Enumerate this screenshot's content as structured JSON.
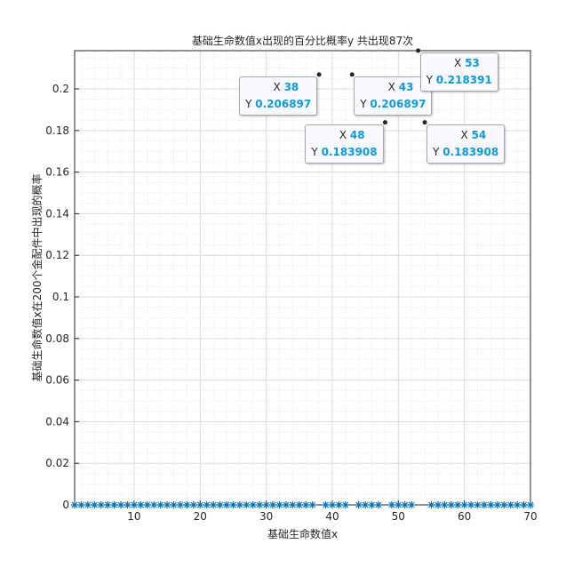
{
  "chart_data": {
    "type": "scatter",
    "title": "基础生命数值x出现的百分比概率y   共出现87次",
    "xlabel": "基础生命数值x",
    "ylabel": "基础生命数值x在200个金配件中出现的概率",
    "xlim": [
      1,
      70
    ],
    "ylim": [
      0,
      0.218391
    ],
    "xticks": [
      10,
      20,
      30,
      40,
      50,
      60,
      70
    ],
    "yticks": [
      0,
      0.02,
      0.04,
      0.06,
      0.08,
      0.1,
      0.12,
      0.14,
      0.16,
      0.18,
      0.2
    ],
    "grid": true,
    "marker": "*",
    "color": "#0072bd",
    "x": [
      1,
      2,
      3,
      4,
      5,
      6,
      7,
      8,
      9,
      10,
      11,
      12,
      13,
      14,
      15,
      16,
      17,
      18,
      19,
      20,
      21,
      22,
      23,
      24,
      25,
      26,
      27,
      28,
      29,
      30,
      31,
      32,
      33,
      34,
      35,
      36,
      37,
      38,
      39,
      40,
      41,
      42,
      43,
      44,
      45,
      46,
      47,
      48,
      49,
      50,
      51,
      52,
      53,
      54,
      55,
      56,
      57,
      58,
      59,
      60,
      61,
      62,
      63,
      64,
      65,
      66,
      67,
      68,
      69,
      70
    ],
    "y": [
      0,
      0,
      0,
      0,
      0,
      0,
      0,
      0,
      0,
      0,
      0,
      0,
      0,
      0,
      0,
      0,
      0,
      0,
      0,
      0,
      0,
      0,
      0,
      0,
      0,
      0,
      0,
      0,
      0,
      0,
      0,
      0,
      0,
      0,
      0,
      0,
      0,
      0.206897,
      0,
      0,
      0,
      0,
      0.206897,
      0,
      0,
      0,
      0,
      0.183908,
      0,
      0,
      0,
      0,
      0.218391,
      0.183908,
      0,
      0,
      0,
      0,
      0,
      0,
      0,
      0,
      0,
      0,
      0,
      0,
      0,
      0,
      0,
      0
    ],
    "datatips": [
      {
        "x": "38",
        "y": "0.206897",
        "side": "left"
      },
      {
        "x": "43",
        "y": "0.206897",
        "side": "right"
      },
      {
        "x": "48",
        "y": "0.183908",
        "side": "left"
      },
      {
        "x": "53",
        "y": "0.218391",
        "side": "right"
      },
      {
        "x": "54",
        "y": "0.183908",
        "side": "right"
      }
    ],
    "datatip_labels": {
      "x": "X",
      "y": "Y"
    }
  }
}
